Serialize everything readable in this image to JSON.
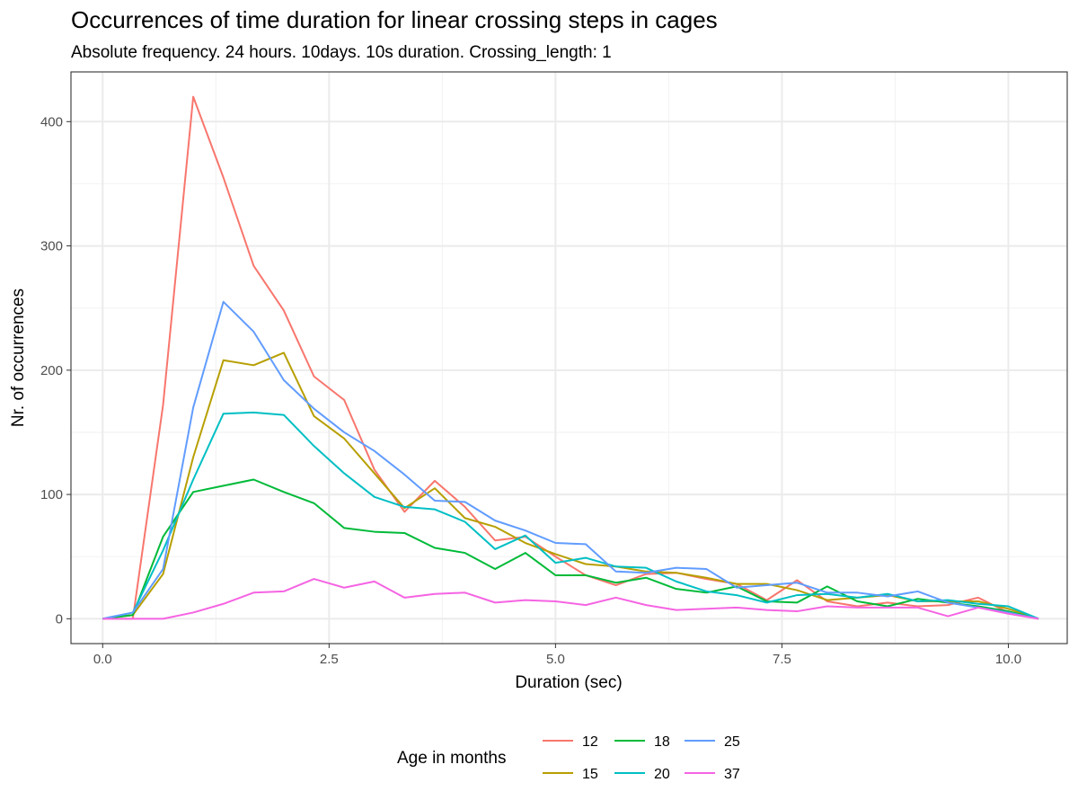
{
  "chart_data": {
    "type": "line",
    "title": "Occurrences of time duration for linear crossing steps in cages",
    "subtitle": "Absolute frequency. 24 hours. 10days. 10s duration. Crossing_length: 1",
    "xlabel": "Duration (sec)",
    "ylabel": "Nr. of occurrences",
    "xlim": [
      -0.35,
      10.65
    ],
    "ylim": [
      -20,
      440
    ],
    "xticks": [
      0,
      2.5,
      5,
      7.5,
      10
    ],
    "xtick_labels": [
      "0.0",
      "2.5",
      "5.0",
      "7.5",
      "10.0"
    ],
    "yticks": [
      0,
      100,
      200,
      300,
      400
    ],
    "ytick_labels": [
      "0",
      "100",
      "200",
      "300",
      "400"
    ],
    "grid": true,
    "legend": {
      "title": "Age in months",
      "position": "bottom"
    },
    "x": [
      0,
      0.333,
      0.667,
      1.0,
      1.333,
      1.667,
      2.0,
      2.333,
      2.667,
      3.0,
      3.333,
      3.667,
      4.0,
      4.333,
      4.667,
      5.0,
      5.333,
      5.667,
      6.0,
      6.333,
      6.667,
      7.0,
      7.333,
      7.667,
      8.0,
      8.333,
      8.667,
      9.0,
      9.333,
      9.667,
      10.0,
      10.333
    ],
    "series": [
      {
        "name": "12",
        "color": "#F8766D",
        "values": [
          0,
          0,
          172,
          420,
          355,
          284,
          248,
          195,
          176,
          120,
          86,
          111,
          90,
          63,
          66,
          50,
          35,
          27,
          36,
          37,
          32,
          28,
          15,
          31,
          14,
          10,
          13,
          10,
          11,
          17,
          5,
          0
        ]
      },
      {
        "name": "15",
        "color": "#B79F00",
        "values": [
          0,
          3,
          36,
          130,
          208,
          204,
          214,
          163,
          145,
          117,
          89,
          105,
          81,
          74,
          61,
          52,
          44,
          42,
          38,
          37,
          33,
          28,
          28,
          23,
          15,
          17,
          19,
          14,
          14,
          14,
          8,
          0
        ]
      },
      {
        "name": "18",
        "color": "#00BA38",
        "values": [
          0,
          3,
          66,
          102,
          107,
          112,
          102,
          93,
          73,
          70,
          69,
          57,
          53,
          40,
          53,
          35,
          35,
          29,
          33,
          24,
          21,
          26,
          14,
          13,
          26,
          14,
          10,
          16,
          13,
          10,
          6,
          0
        ]
      },
      {
        "name": "20",
        "color": "#00BFC4",
        "values": [
          0,
          5,
          55,
          112,
          165,
          166,
          164,
          139,
          117,
          98,
          90,
          88,
          78,
          56,
          67,
          45,
          49,
          42,
          41,
          30,
          22,
          19,
          13,
          19,
          20,
          17,
          20,
          14,
          15,
          12,
          10,
          0
        ]
      },
      {
        "name": "25",
        "color": "#619CFF",
        "values": [
          0,
          5,
          40,
          170,
          255,
          231,
          192,
          169,
          150,
          135,
          116,
          95,
          94,
          79,
          71,
          61,
          60,
          38,
          37,
          41,
          40,
          25,
          27,
          29,
          21,
          21,
          18,
          22,
          13,
          9,
          5,
          0
        ]
      },
      {
        "name": "37",
        "color": "#F564E3",
        "values": [
          0,
          0,
          0,
          5,
          12,
          21,
          22,
          32,
          25,
          30,
          17,
          20,
          21,
          13,
          15,
          14,
          11,
          17,
          11,
          7,
          8,
          9,
          7,
          6,
          10,
          9,
          9,
          9,
          2,
          9,
          4,
          0
        ]
      }
    ]
  }
}
